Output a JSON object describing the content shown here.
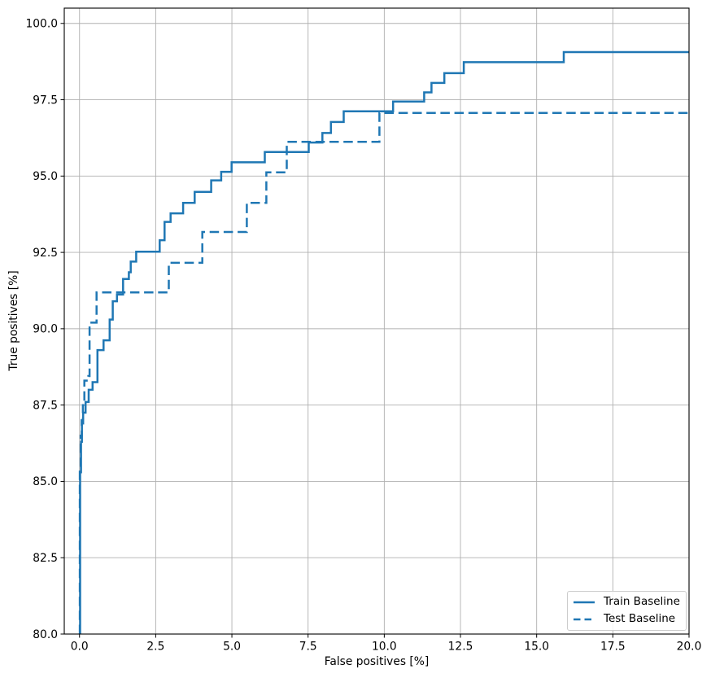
{
  "chart_data": {
    "type": "line",
    "subtype": "roc-step-curves",
    "title": "",
    "xlabel": "False positives [%]",
    "ylabel": "True positives [%]",
    "xlim": [
      -0.5,
      20.0
    ],
    "ylim": [
      80.0,
      100.5
    ],
    "grid": true,
    "grid_color": "#b0b0b0",
    "spine_color": "#000000",
    "accent_color": "#1f77b4",
    "legend_position": "lower right",
    "xticks": {
      "values": [
        0,
        2.5,
        5,
        7.5,
        10,
        12.5,
        15,
        17.5,
        20
      ],
      "labels": [
        "0.0",
        "2.5",
        "5.0",
        "7.5",
        "10.0",
        "12.5",
        "15.0",
        "17.5",
        "20.0"
      ]
    },
    "yticks": {
      "values": [
        80,
        82.5,
        85,
        87.5,
        90,
        92.5,
        95,
        97.5,
        100
      ],
      "labels": [
        "80.0",
        "82.5",
        "85.0",
        "87.5",
        "90.0",
        "92.5",
        "95.0",
        "97.5",
        "100.0"
      ]
    },
    "series": [
      {
        "name": "Train Baseline",
        "style": "solid",
        "color": "#1f77b4",
        "points": [
          [
            0.02,
            80.0
          ],
          [
            0.02,
            85.3
          ],
          [
            0.05,
            85.3
          ],
          [
            0.05,
            86.3
          ],
          [
            0.08,
            86.3
          ],
          [
            0.08,
            86.9
          ],
          [
            0.12,
            86.9
          ],
          [
            0.12,
            87.25
          ],
          [
            0.2,
            87.25
          ],
          [
            0.2,
            87.6
          ],
          [
            0.3,
            87.6
          ],
          [
            0.3,
            88.0
          ],
          [
            0.43,
            88.0
          ],
          [
            0.43,
            88.25
          ],
          [
            0.59,
            88.25
          ],
          [
            0.59,
            89.3
          ],
          [
            0.79,
            89.3
          ],
          [
            0.79,
            89.62
          ],
          [
            0.99,
            89.62
          ],
          [
            0.99,
            90.3
          ],
          [
            1.09,
            90.3
          ],
          [
            1.09,
            90.9
          ],
          [
            1.23,
            90.9
          ],
          [
            1.23,
            91.12
          ],
          [
            1.43,
            91.12
          ],
          [
            1.43,
            91.63
          ],
          [
            1.62,
            91.63
          ],
          [
            1.62,
            91.85
          ],
          [
            1.68,
            91.85
          ],
          [
            1.68,
            92.2
          ],
          [
            1.86,
            92.2
          ],
          [
            1.86,
            92.52
          ],
          [
            2.63,
            92.52
          ],
          [
            2.63,
            92.9
          ],
          [
            2.79,
            92.9
          ],
          [
            2.79,
            93.5
          ],
          [
            2.99,
            93.5
          ],
          [
            2.99,
            93.78
          ],
          [
            3.4,
            93.78
          ],
          [
            3.4,
            94.12
          ],
          [
            3.78,
            94.12
          ],
          [
            3.78,
            94.48
          ],
          [
            4.32,
            94.48
          ],
          [
            4.32,
            94.86
          ],
          [
            4.65,
            94.86
          ],
          [
            4.65,
            95.14
          ],
          [
            4.99,
            95.14
          ],
          [
            4.99,
            95.45
          ],
          [
            6.08,
            95.45
          ],
          [
            6.08,
            95.79
          ],
          [
            7.52,
            95.79
          ],
          [
            7.52,
            96.1
          ],
          [
            7.97,
            96.1
          ],
          [
            7.97,
            96.41
          ],
          [
            8.25,
            96.41
          ],
          [
            8.25,
            96.77
          ],
          [
            8.67,
            96.77
          ],
          [
            8.67,
            97.12
          ],
          [
            10.29,
            97.12
          ],
          [
            10.29,
            97.44
          ],
          [
            11.31,
            97.44
          ],
          [
            11.31,
            97.74
          ],
          [
            11.55,
            97.74
          ],
          [
            11.55,
            98.05
          ],
          [
            11.97,
            98.05
          ],
          [
            11.97,
            98.37
          ],
          [
            12.61,
            98.37
          ],
          [
            12.61,
            98.73
          ],
          [
            15.89,
            98.73
          ],
          [
            15.89,
            99.06
          ],
          [
            20.0,
            99.06
          ]
        ]
      },
      {
        "name": "Test Baseline",
        "style": "dashed",
        "color": "#1f77b4",
        "points": [
          [
            0.01,
            80.0
          ],
          [
            0.01,
            85.5
          ],
          [
            0.04,
            85.5
          ],
          [
            0.04,
            86.5
          ],
          [
            0.07,
            86.5
          ],
          [
            0.07,
            87.0
          ],
          [
            0.11,
            87.0
          ],
          [
            0.11,
            87.5
          ],
          [
            0.16,
            87.5
          ],
          [
            0.16,
            88.3
          ],
          [
            0.29,
            88.3
          ],
          [
            0.29,
            88.45
          ],
          [
            0.33,
            88.45
          ],
          [
            0.33,
            90.2
          ],
          [
            0.56,
            90.2
          ],
          [
            0.56,
            91.19
          ],
          [
            2.93,
            91.19
          ],
          [
            2.93,
            92.16
          ],
          [
            4.03,
            92.16
          ],
          [
            4.03,
            93.17
          ],
          [
            5.49,
            93.17
          ],
          [
            5.49,
            94.12
          ],
          [
            6.13,
            94.12
          ],
          [
            6.13,
            95.12
          ],
          [
            6.8,
            95.12
          ],
          [
            6.8,
            96.12
          ],
          [
            9.84,
            96.12
          ],
          [
            9.84,
            97.07
          ],
          [
            20.0,
            97.07
          ]
        ]
      }
    ]
  }
}
